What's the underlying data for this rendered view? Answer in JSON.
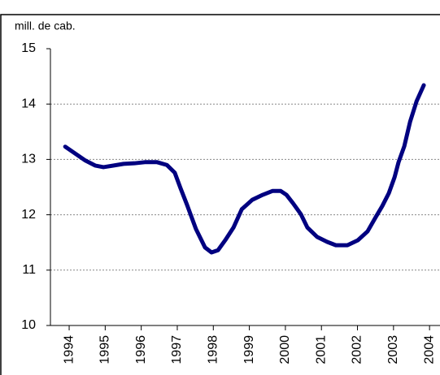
{
  "chart_data": {
    "type": "line",
    "y_unit_label": "mill. de cab.",
    "x": [
      1993.89,
      1994.16,
      1994.45,
      1994.72,
      1994.95,
      1995.24,
      1995.51,
      1995.81,
      1996.1,
      1996.44,
      1996.71,
      1996.93,
      1997.09,
      1997.27,
      1997.52,
      1997.77,
      1997.95,
      1998.13,
      1998.33,
      1998.56,
      1998.79,
      1999.08,
      1999.37,
      1999.64,
      1999.87,
      2000.03,
      2000.21,
      2000.43,
      2000.61,
      2000.88,
      2001.16,
      2001.4,
      2001.72,
      2002.01,
      2002.28,
      2002.5,
      2002.69,
      2002.87,
      2003.03,
      2003.14,
      2003.3,
      2003.46,
      2003.64,
      2003.84
    ],
    "values": [
      13.23,
      13.11,
      12.98,
      12.89,
      12.86,
      12.89,
      12.92,
      12.93,
      12.95,
      12.95,
      12.9,
      12.76,
      12.48,
      12.18,
      11.74,
      11.41,
      11.32,
      11.36,
      11.54,
      11.77,
      12.1,
      12.27,
      12.36,
      12.43,
      12.43,
      12.36,
      12.21,
      12.01,
      11.77,
      11.6,
      11.51,
      11.45,
      11.45,
      11.54,
      11.7,
      11.95,
      12.16,
      12.39,
      12.68,
      12.95,
      13.24,
      13.68,
      14.05,
      14.34
    ],
    "color": "#000080",
    "xlim": [
      1993.48,
      2004.29
    ],
    "xticks": [
      1994,
      1995,
      1996,
      1997,
      1998,
      1999,
      2000,
      2001,
      2002,
      2003,
      2004
    ],
    "ylim": [
      10,
      15
    ],
    "yticks": [
      10,
      11,
      12,
      13,
      14,
      15
    ],
    "grid": true
  }
}
